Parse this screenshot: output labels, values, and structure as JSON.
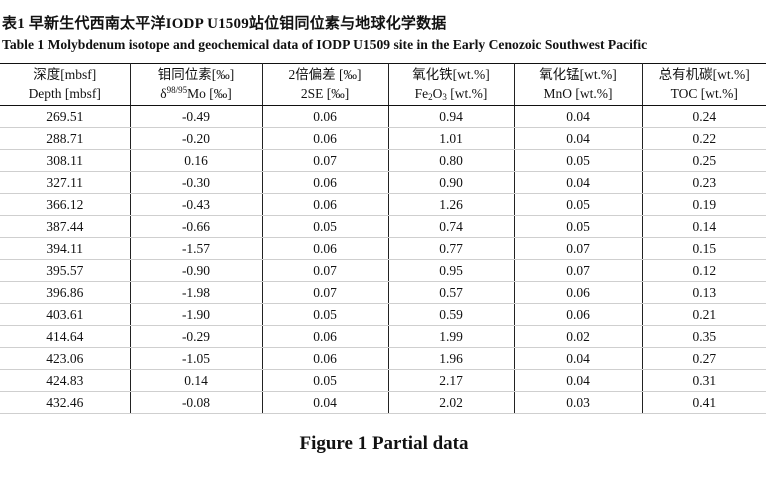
{
  "title_cn": "表1 早新生代西南太平洋IODP U1509站位钼同位素与地球化学数据",
  "title_en": "Table 1  Molybdenum isotope and geochemical data of IODP U1509 site in the Early Cenozoic Southwest Pacific",
  "headers": [
    {
      "cn": "深度[mbsf]",
      "en": "Depth [mbsf]"
    },
    {
      "cn": "钼同位素[‰]",
      "en_pre": "δ",
      "en_sup": "98/95",
      "en_post": "Mo [‰]"
    },
    {
      "cn": "2倍偏差 [‰]",
      "en": "2SE [‰]"
    },
    {
      "cn": "氧化铁[wt.%]",
      "en_pre": "Fe",
      "en_sub1": "2",
      "en_mid": "O",
      "en_sub2": "3",
      "en_post": " [wt.%]"
    },
    {
      "cn": "氧化锰[wt.%]",
      "en": "MnO [wt.%]"
    },
    {
      "cn": "总有机碳[wt.%]",
      "en": "TOC [wt.%]"
    }
  ],
  "rows": [
    [
      "269.51",
      "-0.49",
      "0.06",
      "0.94",
      "0.04",
      "0.24"
    ],
    [
      "288.71",
      "-0.20",
      "0.06",
      "1.01",
      "0.04",
      "0.22"
    ],
    [
      "308.11",
      "0.16",
      "0.07",
      "0.80",
      "0.05",
      "0.25"
    ],
    [
      "327.11",
      "-0.30",
      "0.06",
      "0.90",
      "0.04",
      "0.23"
    ],
    [
      "366.12",
      "-0.43",
      "0.06",
      "1.26",
      "0.05",
      "0.19"
    ],
    [
      "387.44",
      "-0.66",
      "0.05",
      "0.74",
      "0.05",
      "0.14"
    ],
    [
      "394.11",
      "-1.57",
      "0.06",
      "0.77",
      "0.07",
      "0.15"
    ],
    [
      "395.57",
      "-0.90",
      "0.07",
      "0.95",
      "0.07",
      "0.12"
    ],
    [
      "396.86",
      "-1.98",
      "0.07",
      "0.57",
      "0.06",
      "0.13"
    ],
    [
      "403.61",
      "-1.90",
      "0.05",
      "0.59",
      "0.06",
      "0.21"
    ],
    [
      "414.64",
      "-0.29",
      "0.06",
      "1.99",
      "0.02",
      "0.35"
    ],
    [
      "423.06",
      "-1.05",
      "0.06",
      "1.96",
      "0.04",
      "0.27"
    ],
    [
      "424.83",
      "0.14",
      "0.05",
      "2.17",
      "0.04",
      "0.31"
    ],
    [
      "432.46",
      "-0.08",
      "0.04",
      "2.02",
      "0.03",
      "0.41"
    ]
  ],
  "caption": "Figure 1  Partial data"
}
